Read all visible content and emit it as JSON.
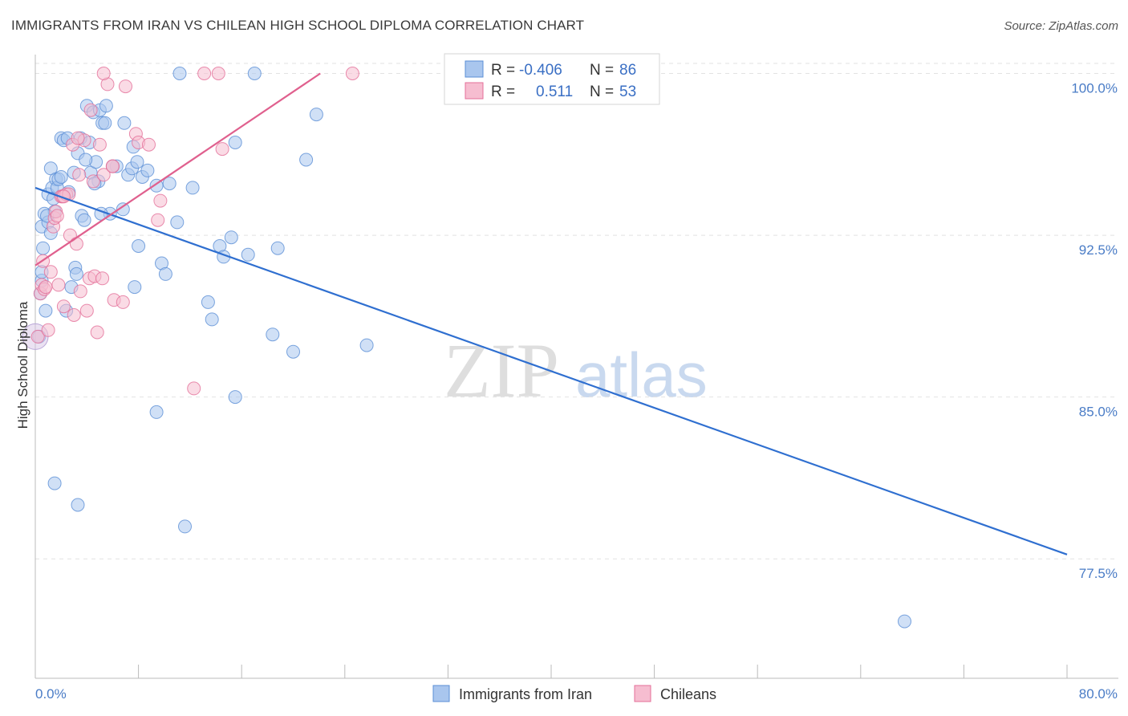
{
  "title": "IMMIGRANTS FROM IRAN VS CHILEAN HIGH SCHOOL DIPLOMA CORRELATION CHART",
  "source": "Source: ZipAtlas.com",
  "watermark": {
    "zip": "ZIP",
    "atlas": "atlas"
  },
  "chart_data": {
    "type": "scatter",
    "title": "IMMIGRANTS FROM IRAN VS CHILEAN HIGH SCHOOL DIPLOMA CORRELATION CHART",
    "xlabel": "",
    "ylabel": "High School Diploma",
    "xlim": [
      0,
      80
    ],
    "ylim": [
      72,
      100.8
    ],
    "x_tick_labels": [
      "0.0%",
      "80.0%"
    ],
    "y_ticks": [
      77.5,
      85.0,
      92.5,
      100.0
    ],
    "y_tick_labels": [
      "77.5%",
      "85.0%",
      "92.5%",
      "100.0%"
    ],
    "legend": {
      "series1": {
        "r_label": "R =",
        "r_value": "-0.406",
        "n_label": "N =",
        "n_value": "86"
      },
      "series2": {
        "r_label": "R =",
        "r_value": "0.511",
        "n_label": "N =",
        "n_value": "53"
      }
    },
    "series": [
      {
        "name": "Immigrants from Iran",
        "color": "#5b8fd6",
        "fill": "#a9c6ee",
        "trend": {
          "x": [
            0,
            80
          ],
          "y": [
            94.7,
            77.7
          ]
        },
        "points": [
          [
            0.3,
            87.8
          ],
          [
            0.5,
            90.4
          ],
          [
            0.5,
            90.8
          ],
          [
            0.5,
            92.9
          ],
          [
            0.6,
            91.9
          ],
          [
            0.7,
            93.5
          ],
          [
            0.8,
            89.0
          ],
          [
            1.0,
            93.1
          ],
          [
            1.0,
            94.4
          ],
          [
            1.2,
            95.6
          ],
          [
            1.3,
            94.7
          ],
          [
            1.4,
            94.2
          ],
          [
            1.5,
            93.6
          ],
          [
            1.6,
            95.1
          ],
          [
            1.7,
            94.7
          ],
          [
            1.8,
            95.1
          ],
          [
            2.0,
            97.0
          ],
          [
            2.2,
            96.9
          ],
          [
            2.4,
            89.0
          ],
          [
            2.6,
            94.5
          ],
          [
            2.8,
            90.1
          ],
          [
            3.0,
            95.4
          ],
          [
            3.1,
            91.0
          ],
          [
            3.2,
            90.7
          ],
          [
            3.3,
            96.3
          ],
          [
            3.5,
            97.0
          ],
          [
            3.6,
            93.4
          ],
          [
            3.8,
            93.2
          ],
          [
            4.0,
            98.5
          ],
          [
            4.2,
            96.8
          ],
          [
            4.3,
            95.4
          ],
          [
            4.5,
            98.2
          ],
          [
            4.7,
            95.9
          ],
          [
            4.9,
            95.0
          ],
          [
            5.0,
            98.3
          ],
          [
            5.2,
            97.7
          ],
          [
            5.4,
            97.7
          ],
          [
            5.5,
            98.5
          ],
          [
            5.8,
            93.5
          ],
          [
            6.3,
            95.7
          ],
          [
            6.8,
            93.7
          ],
          [
            6.9,
            97.7
          ],
          [
            7.2,
            95.3
          ],
          [
            7.5,
            95.6
          ],
          [
            7.6,
            96.6
          ],
          [
            7.9,
            95.9
          ],
          [
            8.3,
            95.2
          ],
          [
            8.7,
            95.5
          ],
          [
            9.4,
            94.8
          ],
          [
            9.8,
            91.2
          ],
          [
            10.1,
            90.7
          ],
          [
            10.4,
            94.9
          ],
          [
            11.0,
            93.1
          ],
          [
            11.2,
            100.0
          ],
          [
            12.2,
            94.7
          ],
          [
            13.4,
            89.4
          ],
          [
            13.7,
            88.6
          ],
          [
            14.3,
            92.0
          ],
          [
            14.6,
            91.5
          ],
          [
            15.2,
            92.4
          ],
          [
            15.5,
            96.8
          ],
          [
            16.5,
            91.6
          ],
          [
            18.4,
            87.9
          ],
          [
            18.8,
            91.9
          ],
          [
            20.0,
            87.1
          ],
          [
            21.0,
            96.0
          ],
          [
            21.8,
            98.1
          ],
          [
            25.7,
            87.4
          ],
          [
            17.0,
            100.0
          ],
          [
            7.7,
            90.1
          ],
          [
            3.3,
            80.0
          ],
          [
            1.5,
            81.0
          ],
          [
            9.4,
            84.3
          ],
          [
            11.6,
            79.0
          ],
          [
            15.5,
            85.0
          ],
          [
            67.4,
            74.6
          ],
          [
            0.9,
            93.4
          ],
          [
            2.5,
            97.0
          ],
          [
            4.6,
            94.9
          ],
          [
            5.1,
            93.5
          ],
          [
            1.2,
            92.6
          ],
          [
            6.0,
            95.7
          ],
          [
            0.4,
            89.8
          ],
          [
            2.0,
            95.2
          ],
          [
            3.9,
            96.0
          ],
          [
            8.0,
            92.0
          ]
        ]
      },
      {
        "name": "Chileans",
        "color": "#e46f98",
        "fill": "#f6bdd0",
        "trend": {
          "x": [
            0,
            22.1
          ],
          "y": [
            91.1,
            100.0
          ]
        },
        "points": [
          [
            0.2,
            87.8
          ],
          [
            0.4,
            89.8
          ],
          [
            0.5,
            90.2
          ],
          [
            0.6,
            91.3
          ],
          [
            0.7,
            90.0
          ],
          [
            0.8,
            90.1
          ],
          [
            1.0,
            88.1
          ],
          [
            1.2,
            90.8
          ],
          [
            1.4,
            92.9
          ],
          [
            1.5,
            93.3
          ],
          [
            1.6,
            93.6
          ],
          [
            1.7,
            93.4
          ],
          [
            1.8,
            90.2
          ],
          [
            2.0,
            94.3
          ],
          [
            2.1,
            94.3
          ],
          [
            2.2,
            89.2
          ],
          [
            2.4,
            94.4
          ],
          [
            2.6,
            94.4
          ],
          [
            2.7,
            92.5
          ],
          [
            2.9,
            96.7
          ],
          [
            3.0,
            88.8
          ],
          [
            3.2,
            92.1
          ],
          [
            3.4,
            95.3
          ],
          [
            3.5,
            89.9
          ],
          [
            3.8,
            96.9
          ],
          [
            4.0,
            89.0
          ],
          [
            4.2,
            90.5
          ],
          [
            4.3,
            98.3
          ],
          [
            4.5,
            95.0
          ],
          [
            4.6,
            90.6
          ],
          [
            4.8,
            88.0
          ],
          [
            5.0,
            96.7
          ],
          [
            5.2,
            90.5
          ],
          [
            5.3,
            95.3
          ],
          [
            5.6,
            99.5
          ],
          [
            6.0,
            95.7
          ],
          [
            6.1,
            89.5
          ],
          [
            6.8,
            89.4
          ],
          [
            7.0,
            99.4
          ],
          [
            7.8,
            97.2
          ],
          [
            8.0,
            96.8
          ],
          [
            8.8,
            96.7
          ],
          [
            9.5,
            93.2
          ],
          [
            9.7,
            94.1
          ],
          [
            12.3,
            85.4
          ],
          [
            13.1,
            100.0
          ],
          [
            14.2,
            100.0
          ],
          [
            14.5,
            96.5
          ],
          [
            24.6,
            100.0
          ],
          [
            5.3,
            100.0
          ],
          [
            3.3,
            97.0
          ],
          [
            6.0,
            95.7
          ],
          [
            2.2,
            94.3
          ]
        ]
      }
    ]
  },
  "bottom_legend": [
    {
      "label": "Immigrants from Iran",
      "fill": "#a9c6ee",
      "stroke": "#5b8fd6"
    },
    {
      "label": "Chileans",
      "fill": "#f6bdd0",
      "stroke": "#e46f98"
    }
  ]
}
